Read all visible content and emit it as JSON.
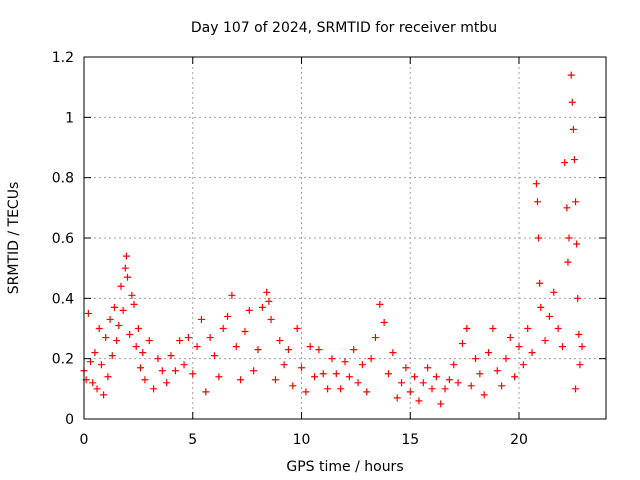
{
  "chart_data": {
    "type": "scatter",
    "title": "Day 107 of 2024, SRMTID for receiver mtbu",
    "xlabel": "GPS time / hours",
    "ylabel": "SRMTID / TECUs",
    "xlim": [
      0,
      24
    ],
    "ylim": [
      0,
      1.2
    ],
    "xticks": [
      0,
      5,
      10,
      15,
      20
    ],
    "yticks": [
      0,
      0.2,
      0.4,
      0.6,
      0.8,
      1,
      1.2
    ],
    "ytick_labels": [
      "0",
      "0.2",
      "0.4",
      "0.6",
      "0.8",
      "1",
      "1.2"
    ],
    "grid": true,
    "marker": "plus",
    "color": "#ff0000",
    "series": [
      {
        "name": "SRMTID",
        "points": [
          [
            0.0,
            0.16
          ],
          [
            0.1,
            0.13
          ],
          [
            0.2,
            0.35
          ],
          [
            0.3,
            0.19
          ],
          [
            0.4,
            0.12
          ],
          [
            0.5,
            0.22
          ],
          [
            0.6,
            0.1
          ],
          [
            0.7,
            0.3
          ],
          [
            0.8,
            0.18
          ],
          [
            0.9,
            0.08
          ],
          [
            1.0,
            0.27
          ],
          [
            1.1,
            0.14
          ],
          [
            1.2,
            0.33
          ],
          [
            1.3,
            0.21
          ],
          [
            1.4,
            0.37
          ],
          [
            1.5,
            0.26
          ],
          [
            1.6,
            0.31
          ],
          [
            1.7,
            0.44
          ],
          [
            1.8,
            0.36
          ],
          [
            1.9,
            0.5
          ],
          [
            1.95,
            0.54
          ],
          [
            2.0,
            0.47
          ],
          [
            2.1,
            0.28
          ],
          [
            2.2,
            0.41
          ],
          [
            2.3,
            0.38
          ],
          [
            2.4,
            0.24
          ],
          [
            2.5,
            0.3
          ],
          [
            2.6,
            0.17
          ],
          [
            2.7,
            0.22
          ],
          [
            2.8,
            0.13
          ],
          [
            3.0,
            0.26
          ],
          [
            3.2,
            0.1
          ],
          [
            3.4,
            0.2
          ],
          [
            3.6,
            0.16
          ],
          [
            3.8,
            0.12
          ],
          [
            4.0,
            0.21
          ],
          [
            4.2,
            0.16
          ],
          [
            4.4,
            0.26
          ],
          [
            4.6,
            0.18
          ],
          [
            4.8,
            0.27
          ],
          [
            5.0,
            0.15
          ],
          [
            5.2,
            0.24
          ],
          [
            5.4,
            0.33
          ],
          [
            5.6,
            0.09
          ],
          [
            5.8,
            0.27
          ],
          [
            6.0,
            0.21
          ],
          [
            6.2,
            0.14
          ],
          [
            6.4,
            0.3
          ],
          [
            6.6,
            0.34
          ],
          [
            6.8,
            0.41
          ],
          [
            7.0,
            0.24
          ],
          [
            7.2,
            0.13
          ],
          [
            7.4,
            0.29
          ],
          [
            7.6,
            0.36
          ],
          [
            7.8,
            0.16
          ],
          [
            8.0,
            0.23
          ],
          [
            8.2,
            0.37
          ],
          [
            8.4,
            0.42
          ],
          [
            8.5,
            0.39
          ],
          [
            8.6,
            0.33
          ],
          [
            8.8,
            0.13
          ],
          [
            9.0,
            0.26
          ],
          [
            9.2,
            0.18
          ],
          [
            9.4,
            0.23
          ],
          [
            9.6,
            0.11
          ],
          [
            9.8,
            0.3
          ],
          [
            10.0,
            0.17
          ],
          [
            10.2,
            0.09
          ],
          [
            10.4,
            0.24
          ],
          [
            10.6,
            0.14
          ],
          [
            10.8,
            0.23
          ],
          [
            11.0,
            0.15
          ],
          [
            11.2,
            0.1
          ],
          [
            11.4,
            0.2
          ],
          [
            11.6,
            0.15
          ],
          [
            11.8,
            0.1
          ],
          [
            12.0,
            0.19
          ],
          [
            12.2,
            0.14
          ],
          [
            12.4,
            0.23
          ],
          [
            12.6,
            0.12
          ],
          [
            12.8,
            0.18
          ],
          [
            13.0,
            0.09
          ],
          [
            13.2,
            0.2
          ],
          [
            13.4,
            0.27
          ],
          [
            13.6,
            0.38
          ],
          [
            13.8,
            0.32
          ],
          [
            14.0,
            0.15
          ],
          [
            14.2,
            0.22
          ],
          [
            14.4,
            0.07
          ],
          [
            14.6,
            0.12
          ],
          [
            14.8,
            0.17
          ],
          [
            15.0,
            0.09
          ],
          [
            15.2,
            0.14
          ],
          [
            15.4,
            0.06
          ],
          [
            15.6,
            0.12
          ],
          [
            15.8,
            0.17
          ],
          [
            16.0,
            0.1
          ],
          [
            16.2,
            0.14
          ],
          [
            16.4,
            0.05
          ],
          [
            16.6,
            0.1
          ],
          [
            16.8,
            0.13
          ],
          [
            17.0,
            0.18
          ],
          [
            17.2,
            0.12
          ],
          [
            17.4,
            0.25
          ],
          [
            17.6,
            0.3
          ],
          [
            17.8,
            0.11
          ],
          [
            18.0,
            0.2
          ],
          [
            18.2,
            0.15
          ],
          [
            18.4,
            0.08
          ],
          [
            18.6,
            0.22
          ],
          [
            18.8,
            0.3
          ],
          [
            19.0,
            0.16
          ],
          [
            19.2,
            0.11
          ],
          [
            19.4,
            0.2
          ],
          [
            19.6,
            0.27
          ],
          [
            19.8,
            0.14
          ],
          [
            20.0,
            0.24
          ],
          [
            20.2,
            0.18
          ],
          [
            20.4,
            0.3
          ],
          [
            20.6,
            0.22
          ],
          [
            20.8,
            0.78
          ],
          [
            20.85,
            0.72
          ],
          [
            20.9,
            0.6
          ],
          [
            20.95,
            0.45
          ],
          [
            21.0,
            0.37
          ],
          [
            21.2,
            0.26
          ],
          [
            21.4,
            0.34
          ],
          [
            21.6,
            0.42
          ],
          [
            21.8,
            0.3
          ],
          [
            22.0,
            0.24
          ],
          [
            22.1,
            0.85
          ],
          [
            22.2,
            0.7
          ],
          [
            22.25,
            0.52
          ],
          [
            22.3,
            0.6
          ],
          [
            22.4,
            1.14
          ],
          [
            22.45,
            1.05
          ],
          [
            22.5,
            0.96
          ],
          [
            22.55,
            0.86
          ],
          [
            22.6,
            0.72
          ],
          [
            22.65,
            0.58
          ],
          [
            22.7,
            0.4
          ],
          [
            22.75,
            0.28
          ],
          [
            22.8,
            0.18
          ],
          [
            22.9,
            0.24
          ],
          [
            22.6,
            0.1
          ]
        ]
      }
    ]
  }
}
